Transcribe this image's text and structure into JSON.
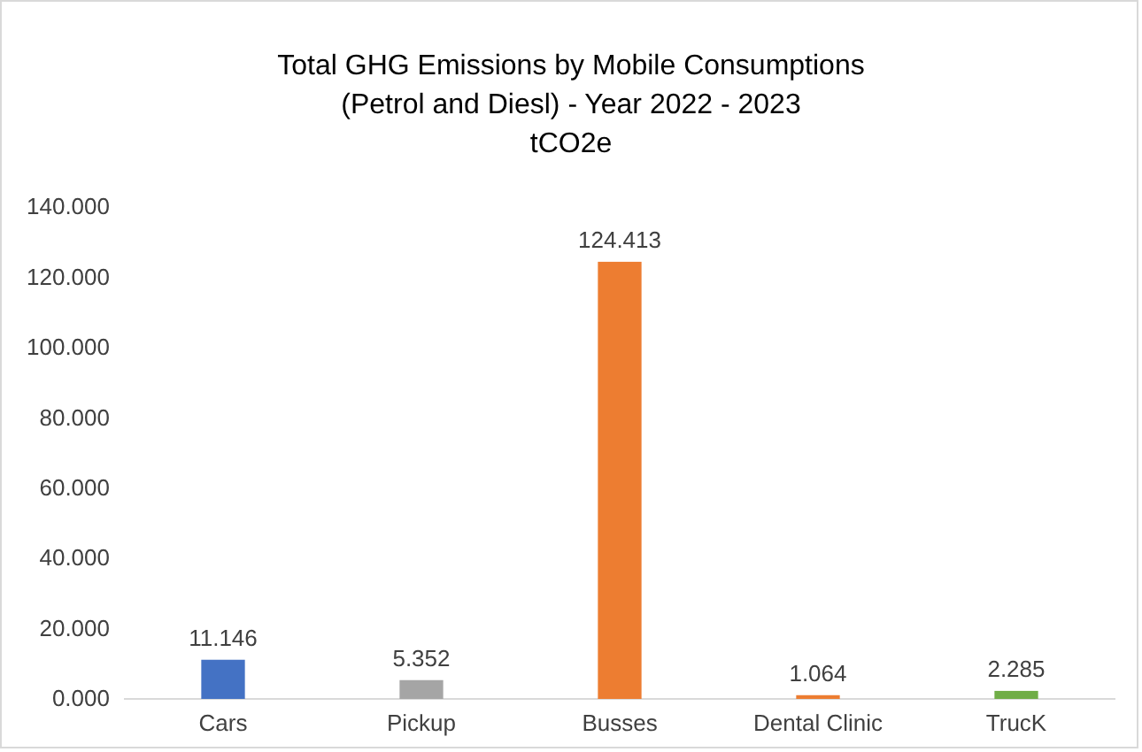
{
  "chart_data": {
    "type": "bar",
    "title": "Total GHG Emissions by Mobile Consumptions\n(Petrol and Diesl) - Year 2022 - 2023",
    "subtitle": "tCO2e",
    "categories": [
      "Cars",
      "Pickup",
      "Busses",
      "Dental Clinic",
      "TrucK"
    ],
    "values": [
      11.146,
      5.352,
      124.413,
      1.064,
      2.285
    ],
    "colors": [
      "#4472c4",
      "#a5a5a5",
      "#ed7d31",
      "#ed7d31",
      "#70ad47"
    ],
    "ylim": [
      0,
      140
    ],
    "yticks": [
      {
        "value": 0,
        "label": "0.000"
      },
      {
        "value": 20,
        "label": "20.000"
      },
      {
        "value": 40,
        "label": "40.000"
      },
      {
        "value": 60,
        "label": "60.000"
      },
      {
        "value": 80,
        "label": "80.000"
      },
      {
        "value": 100,
        "label": "100.000"
      },
      {
        "value": 120,
        "label": "120.000"
      },
      {
        "value": 140,
        "label": "140.000"
      }
    ],
    "data_labels": true
  }
}
